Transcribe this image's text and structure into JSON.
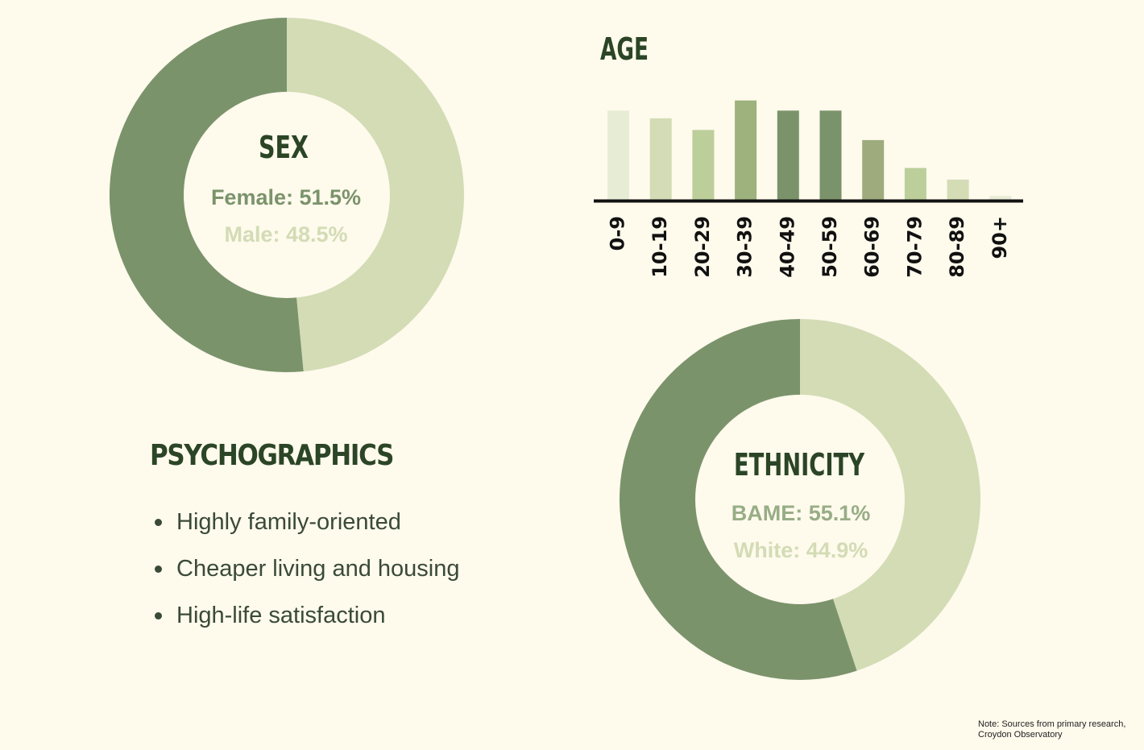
{
  "chart_data": [
    {
      "type": "pie",
      "title": "SEX",
      "slices": [
        {
          "label": "Female",
          "value": 51.5,
          "display": "Female: 51.5%",
          "color": "#7b936b"
        },
        {
          "label": "Male",
          "value": 48.5,
          "display": "Male: 48.5%",
          "color": "#d3dcb5"
        }
      ],
      "label_colors": [
        "#7b936b",
        "#d3dcb5"
      ]
    },
    {
      "type": "bar",
      "title": "AGE",
      "categories": [
        "0-9",
        "10-19",
        "20-29",
        "30-39",
        "40-49",
        "50-59",
        "60-69",
        "70-79",
        "80-89",
        "90+"
      ],
      "values": [
        11.5,
        10.5,
        9,
        12.8,
        11.5,
        11.5,
        7.7,
        4.1,
        2.6,
        0.5
      ],
      "colors": [
        "#e7edd5",
        "#d3dcb5",
        "#bccf9b",
        "#9db27d",
        "#7b936b",
        "#7b936b",
        "#9dab7d",
        "#bccf9b",
        "#d3dcb5",
        "#e7edd5"
      ],
      "ylim": [
        0,
        13.5
      ],
      "xlabel": "",
      "ylabel": ""
    },
    {
      "type": "pie",
      "title": "ETHNICITY",
      "slices": [
        {
          "label": "BAME",
          "value": 55.1,
          "display": "BAME: 55.1%",
          "color": "#7b936b"
        },
        {
          "label": "White",
          "value": 44.9,
          "display": "White: 44.9%",
          "color": "#d3dcb5"
        }
      ],
      "label_colors": [
        "#98ad86",
        "#d3dcb5"
      ]
    }
  ],
  "psychographics": {
    "title": "PSYCHOGRAPHICS",
    "items": [
      "Highly family-oriented",
      "Cheaper living and housing",
      "High-life satisfaction"
    ]
  },
  "note": "Note: Sources from primary research, Croydon Observatory",
  "colors": {
    "heading": "#2b4526",
    "background": "#fefaec",
    "axis": "#111111"
  }
}
